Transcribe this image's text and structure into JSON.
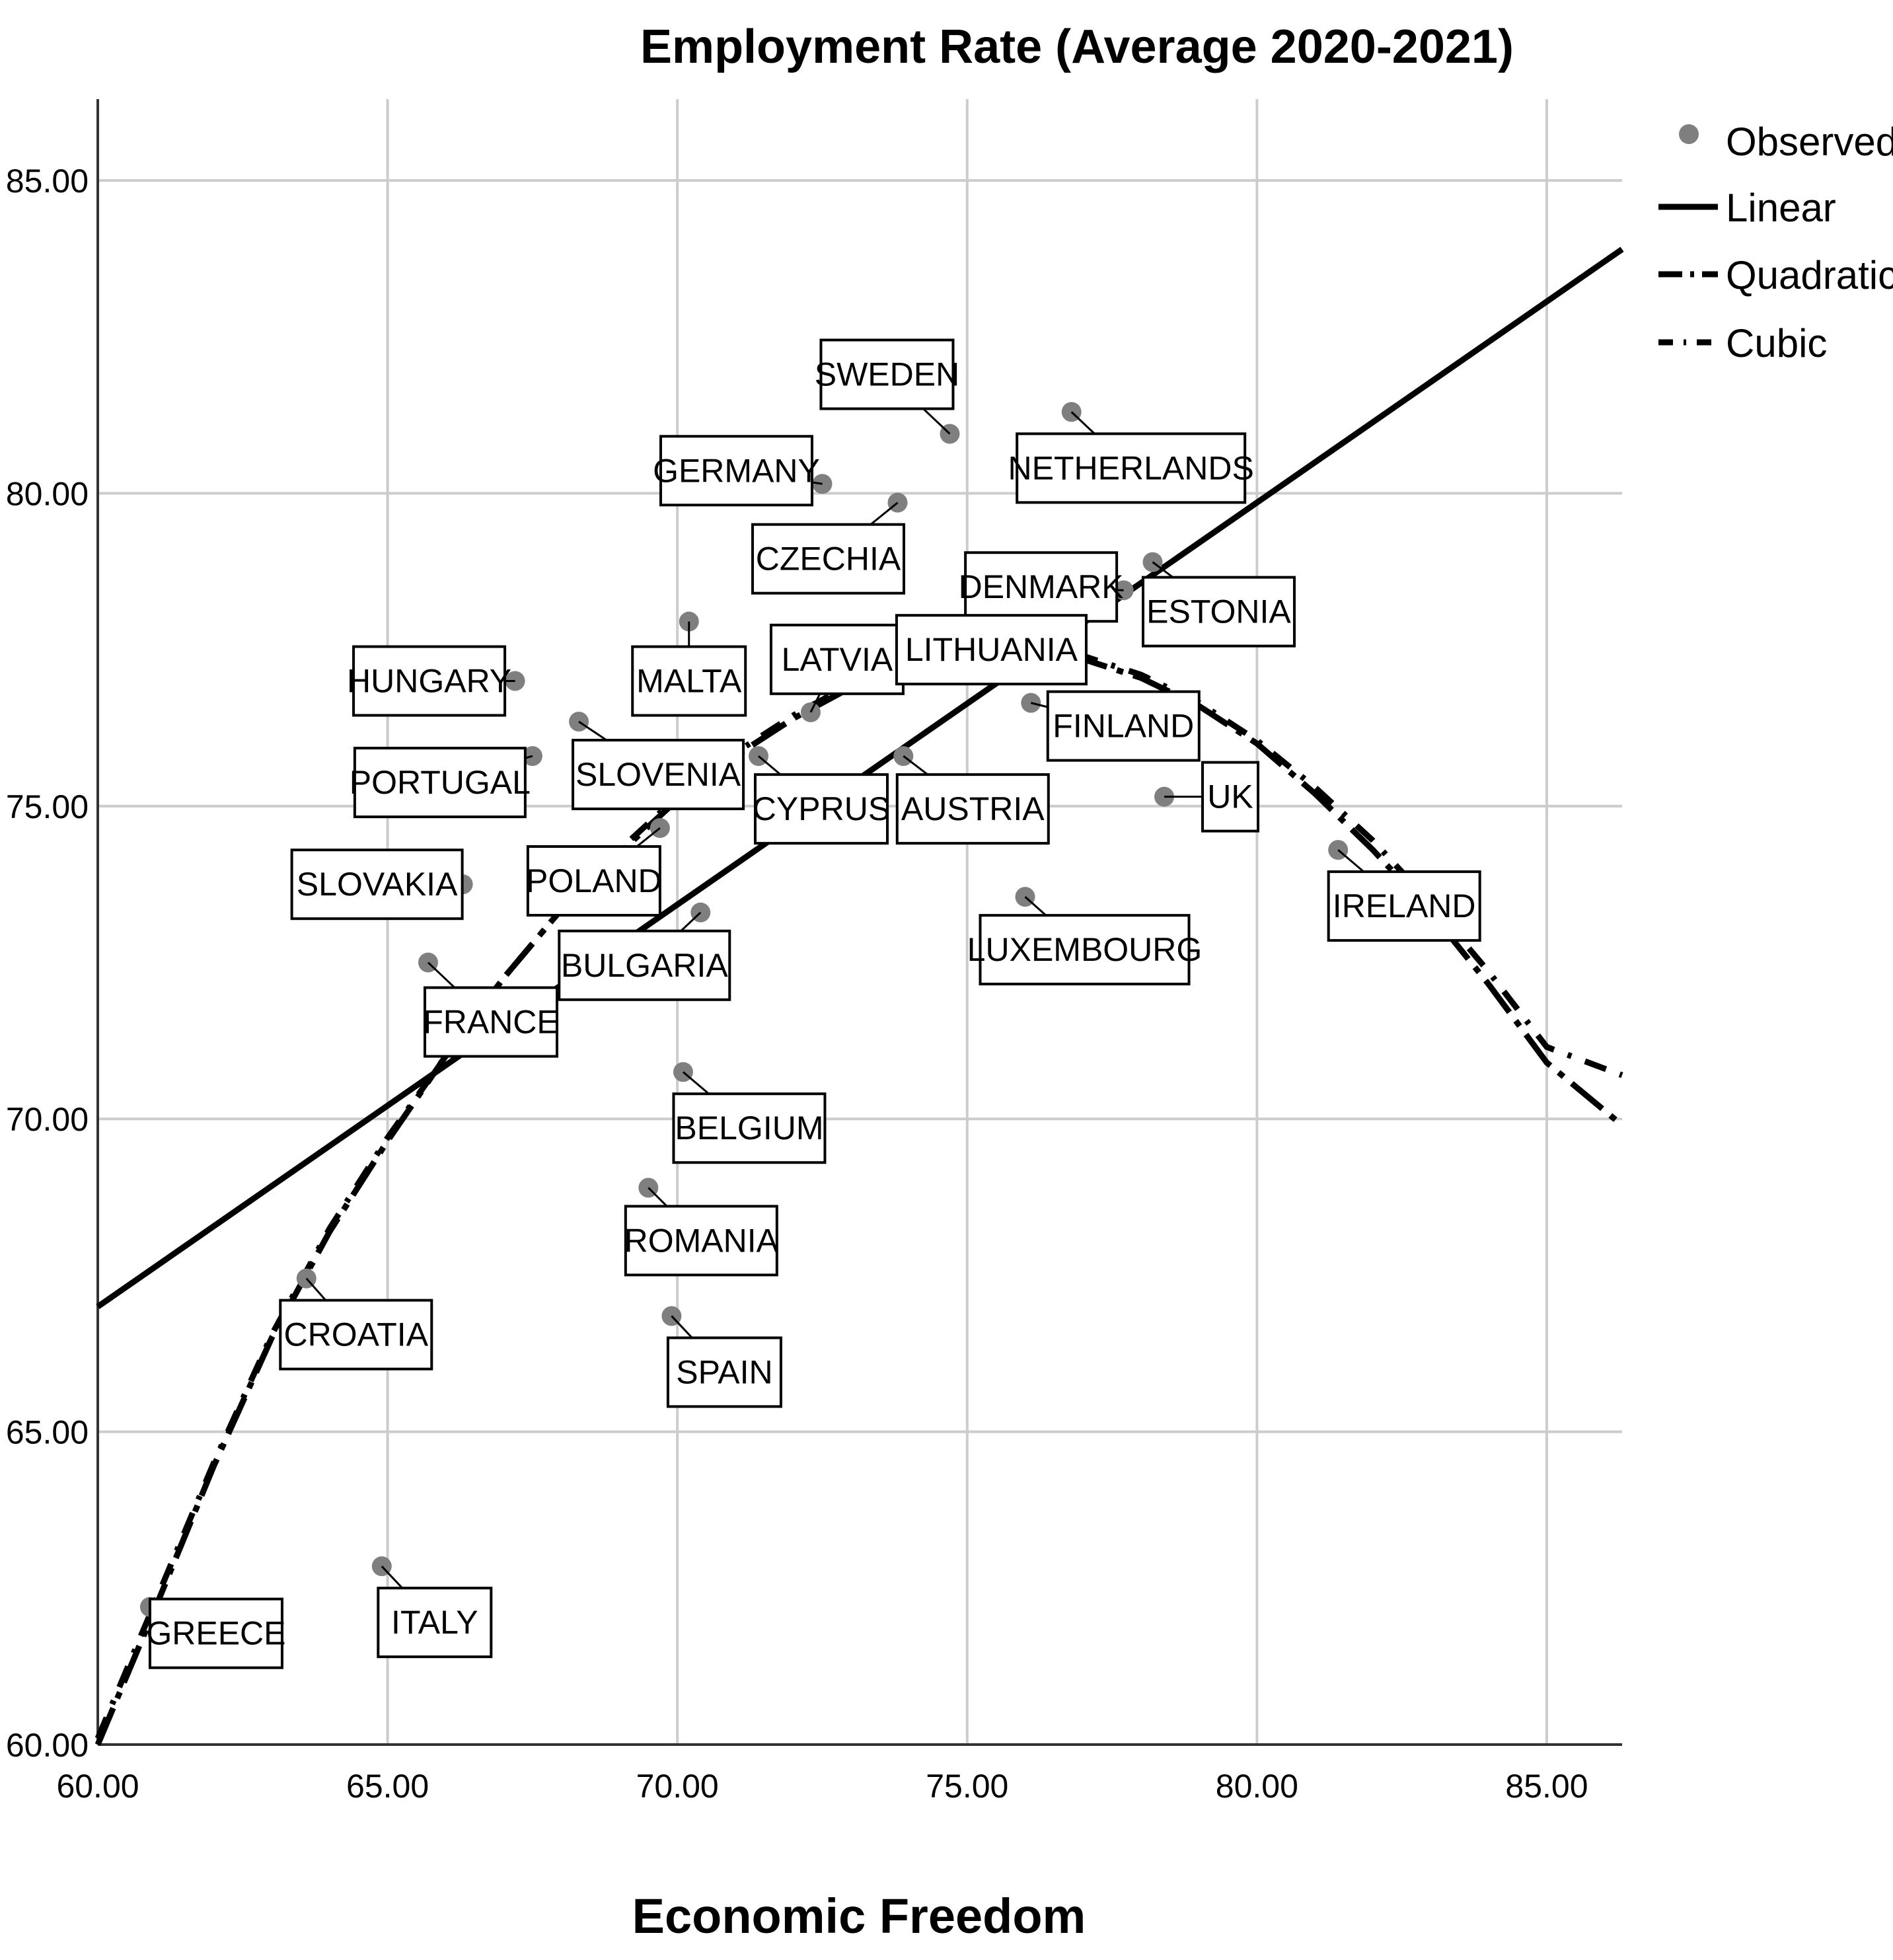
{
  "chart_data": {
    "type": "scatter",
    "title": "Employment Rate (Average 2020-2021)",
    "xlabel": "Economic Freedom",
    "ylabel": "",
    "xlim": [
      60,
      86.3
    ],
    "ylim": [
      60,
      86.3
    ],
    "x_ticks": [
      "60.00",
      "65.00",
      "70.00",
      "75.00",
      "80.00",
      "85.00"
    ],
    "y_ticks": [
      "60.00",
      "65.00",
      "70.00",
      "75.00",
      "80.00",
      "85.00"
    ],
    "grid": true,
    "legend": {
      "position": "top-right",
      "entries": [
        "Observed",
        "Linear",
        "Quadratic",
        "Cubic"
      ]
    },
    "points": [
      {
        "label": "SWEDEN",
        "x": 74.7,
        "y": 80.95
      },
      {
        "label": "NETHERLANDS",
        "x": 76.8,
        "y": 81.3
      },
      {
        "label": "GERMANY",
        "x": 72.5,
        "y": 80.15
      },
      {
        "label": "CZECHIA",
        "x": 73.8,
        "y": 79.85
      },
      {
        "label": "DENMARK",
        "x": 77.7,
        "y": 78.45
      },
      {
        "label": "ESTONIA",
        "x": 78.2,
        "y": 78.9
      },
      {
        "label": "MALTA",
        "x": 70.2,
        "y": 77.95
      },
      {
        "label": "HUNGARY",
        "x": 67.2,
        "y": 77.0
      },
      {
        "label": "LATVIA",
        "x": 72.3,
        "y": 76.5
      },
      {
        "label": "LITHUANIA",
        "x": 76.9,
        "y": 77.5
      },
      {
        "label": "FINLAND",
        "x": 76.1,
        "y": 76.65
      },
      {
        "label": "SLOVENIA",
        "x": 68.3,
        "y": 76.35
      },
      {
        "label": "PORTUGAL",
        "x": 67.5,
        "y": 75.8
      },
      {
        "label": "CYPRUS",
        "x": 71.4,
        "y": 75.8
      },
      {
        "label": "AUSTRIA",
        "x": 73.9,
        "y": 75.8
      },
      {
        "label": "UK",
        "x": 78.4,
        "y": 75.15
      },
      {
        "label": "POLAND",
        "x": 69.7,
        "y": 74.65
      },
      {
        "label": "IRELAND",
        "x": 81.4,
        "y": 74.3
      },
      {
        "label": "SLOVAKIA",
        "x": 66.3,
        "y": 73.75
      },
      {
        "label": "LUXEMBOURG",
        "x": 76.0,
        "y": 73.55
      },
      {
        "label": "BULGARIA",
        "x": 70.4,
        "y": 73.3
      },
      {
        "label": "FRANCE",
        "x": 65.7,
        "y": 72.5
      },
      {
        "label": "BELGIUM",
        "x": 70.1,
        "y": 70.75
      },
      {
        "label": "ROMANIA",
        "x": 69.5,
        "y": 68.9
      },
      {
        "label": "CROATIA",
        "x": 63.6,
        "y": 67.45
      },
      {
        "label": "SPAIN",
        "x": 69.9,
        "y": 66.85
      },
      {
        "label": "ITALY",
        "x": 64.9,
        "y": 62.85
      },
      {
        "label": "GREECE",
        "x": 60.9,
        "y": 62.2
      }
    ],
    "fits": {
      "linear": [
        [
          60,
          67.0
        ],
        [
          86.3,
          83.9
        ]
      ],
      "quadratic": [
        [
          60,
          60.0
        ],
        [
          61,
          62.2
        ],
        [
          62,
          64.45
        ],
        [
          63,
          66.5
        ],
        [
          64,
          68.2
        ],
        [
          65,
          69.65
        ],
        [
          66,
          71.0
        ],
        [
          67,
          72.25
        ],
        [
          68,
          73.35
        ],
        [
          69,
          74.25
        ],
        [
          70,
          75.1
        ],
        [
          71,
          75.8
        ],
        [
          72,
          76.4
        ],
        [
          73,
          76.9
        ],
        [
          74,
          77.25
        ],
        [
          75,
          77.4
        ],
        [
          76,
          77.45
        ],
        [
          77,
          77.35
        ],
        [
          78,
          77.05
        ],
        [
          79,
          76.6
        ],
        [
          80,
          76.0
        ],
        [
          81,
          75.2
        ],
        [
          82,
          74.3
        ],
        [
          83,
          73.3
        ],
        [
          84,
          72.15
        ],
        [
          85,
          70.9
        ],
        [
          86.3,
          69.9
        ]
      ],
      "cubic": [
        [
          60,
          60.1
        ],
        [
          61,
          62.3
        ],
        [
          62,
          64.5
        ],
        [
          63,
          66.55
        ],
        [
          64,
          68.25
        ],
        [
          65,
          69.7
        ],
        [
          66,
          71.0
        ],
        [
          67,
          72.25
        ],
        [
          68,
          73.35
        ],
        [
          69,
          74.3
        ],
        [
          70,
          75.15
        ],
        [
          71,
          75.85
        ],
        [
          72,
          76.45
        ],
        [
          73,
          76.95
        ],
        [
          74,
          77.3
        ],
        [
          75,
          77.45
        ],
        [
          76,
          77.5
        ],
        [
          77,
          77.4
        ],
        [
          78,
          77.1
        ],
        [
          79,
          76.65
        ],
        [
          80,
          76.05
        ],
        [
          81,
          75.3
        ],
        [
          82,
          74.45
        ],
        [
          83,
          73.45
        ],
        [
          84,
          72.35
        ],
        [
          85,
          71.15
        ],
        [
          86.3,
          70.7
        ]
      ]
    }
  }
}
